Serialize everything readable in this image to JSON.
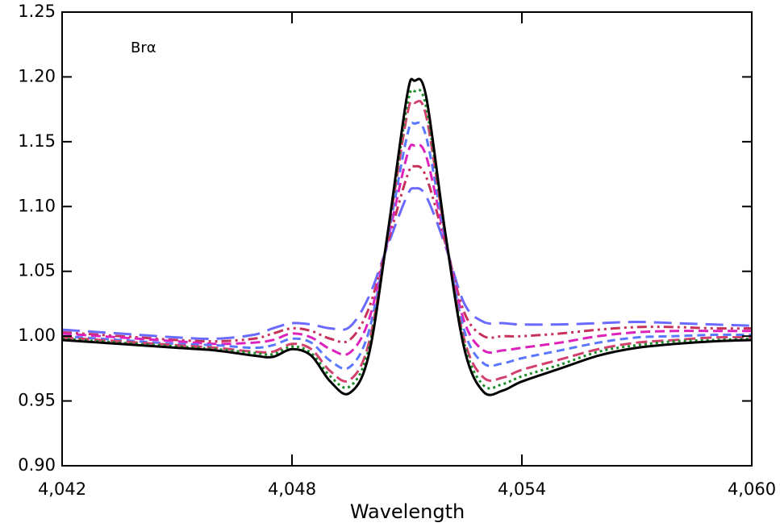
{
  "chart_data": {
    "type": "line",
    "annotation": "Brα",
    "x_label": "Wavelength",
    "xlim": [
      4.042,
      4.06
    ],
    "xticks": [
      {
        "value": 4.042,
        "label": "4.042"
      },
      {
        "value": 4.048,
        "label": "4.048"
      },
      {
        "value": 4.054,
        "label": "4.054"
      },
      {
        "value": 4.06,
        "label": "4.060"
      }
    ],
    "ylim": [
      0.9,
      1.25
    ],
    "yticks": [
      {
        "value": 0.9,
        "label": "0.90"
      },
      0.95,
      {
        "value": 1.0,
        "label": "1.00"
      },
      1.05,
      {
        "value": 1.1,
        "label": "1.10"
      },
      1.15,
      {
        "value": 1.2,
        "label": "1.20"
      },
      1.25
    ],
    "x": [
      4.042,
      4.043,
      4.044,
      4.045,
      4.046,
      4.047,
      4.0475,
      4.048,
      4.0485,
      4.049,
      4.0495,
      4.05,
      4.0505,
      4.051,
      4.0512,
      4.0515,
      4.052,
      4.0525,
      4.053,
      4.0535,
      4.054,
      4.055,
      4.056,
      4.057,
      4.058,
      4.059,
      4.06
    ],
    "series": [
      {
        "color": "#6a6aff",
        "dash": "22,10",
        "values": [
          1.005,
          1.003,
          1.001,
          0.999,
          0.998,
          1.001,
          1.006,
          1.01,
          1.009,
          1.006,
          1.007,
          1.03,
          1.07,
          1.108,
          1.114,
          1.108,
          1.07,
          1.025,
          1.011,
          1.01,
          1.009,
          1.009,
          1.01,
          1.011,
          1.01,
          1.009,
          1.008
        ]
      },
      {
        "color": "#c8325a",
        "dash": "12,5,3,5,3,5",
        "values": [
          1.003,
          1.001,
          0.999,
          0.997,
          0.996,
          0.998,
          1.002,
          1.006,
          1.004,
          0.998,
          0.997,
          1.021,
          1.072,
          1.123,
          1.131,
          1.123,
          1.072,
          1.018,
          1.0,
          1.0,
          1.0,
          1.002,
          1.005,
          1.007,
          1.007,
          1.006,
          1.006
        ]
      },
      {
        "color": "#dd22bb",
        "dash": "12,6",
        "values": [
          1.002,
          1.0,
          0.998,
          0.996,
          0.994,
          0.995,
          0.997,
          1.002,
          0.999,
          0.99,
          0.987,
          1.012,
          1.074,
          1.139,
          1.147,
          1.139,
          1.074,
          1.011,
          0.989,
          0.989,
          0.991,
          0.995,
          1.0,
          1.003,
          1.004,
          1.004,
          1.004
        ]
      },
      {
        "color": "#5a78ff",
        "dash": "10,6",
        "values": [
          1.0,
          0.998,
          0.996,
          0.994,
          0.993,
          0.991,
          0.993,
          0.998,
          0.995,
          0.981,
          0.976,
          1.003,
          1.076,
          1.154,
          1.164,
          1.154,
          1.076,
          1.004,
          0.979,
          0.979,
          0.983,
          0.989,
          0.995,
          0.999,
          1.0,
          1.001,
          1.001
        ]
      },
      {
        "color": "#d2416e",
        "dash": "14,6",
        "values": [
          0.999,
          0.997,
          0.995,
          0.993,
          0.991,
          0.988,
          0.988,
          0.994,
          0.99,
          0.973,
          0.966,
          0.994,
          1.078,
          1.17,
          1.18,
          1.17,
          1.078,
          0.997,
          0.968,
          0.968,
          0.974,
          0.982,
          0.99,
          0.995,
          0.997,
          0.999,
          0.999
        ]
      },
      {
        "color": "#1e8c28",
        "dash": "3,4",
        "values": [
          0.998,
          0.996,
          0.994,
          0.992,
          0.99,
          0.987,
          0.986,
          0.992,
          0.987,
          0.969,
          0.961,
          0.99,
          1.079,
          1.177,
          1.189,
          1.177,
          1.079,
          0.994,
          0.962,
          0.963,
          0.969,
          0.978,
          0.988,
          0.993,
          0.996,
          0.997,
          0.998
        ]
      },
      {
        "color": "#000000",
        "dash": "none",
        "values": [
          0.997,
          0.995,
          0.993,
          0.991,
          0.989,
          0.985,
          0.984,
          0.99,
          0.985,
          0.965,
          0.956,
          0.985,
          1.08,
          1.185,
          1.197,
          1.185,
          1.08,
          0.99,
          0.957,
          0.958,
          0.965,
          0.975,
          0.985,
          0.991,
          0.994,
          0.996,
          0.997
        ]
      }
    ]
  }
}
